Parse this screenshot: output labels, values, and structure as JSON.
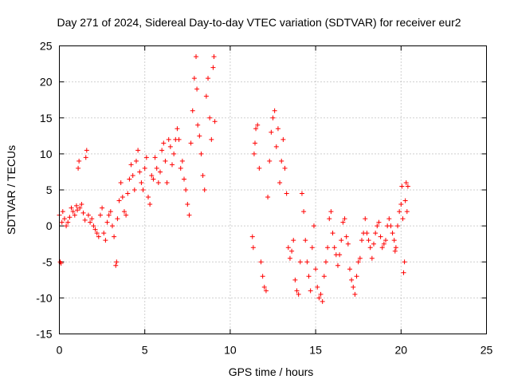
{
  "chart_data": {
    "type": "scatter",
    "title": "Day 271 of 2024, Sidereal Day-to-day VTEC variation (SDTVAR) for receiver eur2",
    "xlabel": "GPS time / hours",
    "ylabel": "SDTVAR / TECUs",
    "xlim": [
      0,
      25
    ],
    "ylim": [
      -15,
      25
    ],
    "xticks": [
      0,
      5,
      10,
      15,
      20,
      25
    ],
    "xtick_labels": [
      "0",
      "5",
      "10",
      "15",
      "20",
      "25"
    ],
    "yticks": [
      -15,
      -10,
      -5,
      0,
      5,
      10,
      15,
      20,
      25
    ],
    "ytick_labels": [
      "-15",
      "-10",
      "-5",
      "0",
      "5",
      "10",
      "15",
      "20",
      "25"
    ],
    "grid": true,
    "marker": "+",
    "color": "#ff0000",
    "series": [
      {
        "name": "SDTVAR",
        "points": [
          [
            0.0,
            1.5
          ],
          [
            0.05,
            -5.0
          ],
          [
            0.1,
            -5.2
          ],
          [
            0.15,
            0.5
          ],
          [
            0.2,
            2.0
          ],
          [
            0.3,
            1.0
          ],
          [
            0.4,
            0.0
          ],
          [
            0.5,
            0.5
          ],
          [
            0.6,
            1.2
          ],
          [
            0.7,
            2.5
          ],
          [
            0.8,
            2.0
          ],
          [
            0.9,
            1.5
          ],
          [
            1.0,
            2.8
          ],
          [
            1.05,
            2.2
          ],
          [
            1.1,
            8.0
          ],
          [
            1.15,
            9.0
          ],
          [
            1.2,
            2.5
          ],
          [
            1.3,
            3.0
          ],
          [
            1.4,
            1.8
          ],
          [
            1.5,
            0.8
          ],
          [
            1.55,
            9.5
          ],
          [
            1.6,
            10.5
          ],
          [
            1.7,
            1.5
          ],
          [
            1.8,
            0.5
          ],
          [
            1.9,
            1.0
          ],
          [
            2.0,
            0.0
          ],
          [
            2.1,
            -0.5
          ],
          [
            2.2,
            -1.0
          ],
          [
            2.3,
            -1.5
          ],
          [
            2.4,
            1.5
          ],
          [
            2.5,
            2.5
          ],
          [
            2.6,
            -1.0
          ],
          [
            2.7,
            -2.0
          ],
          [
            2.8,
            0.5
          ],
          [
            2.9,
            1.5
          ],
          [
            3.0,
            2.0
          ],
          [
            3.1,
            0.0
          ],
          [
            3.2,
            -1.5
          ],
          [
            3.3,
            -5.5
          ],
          [
            3.35,
            -5.0
          ],
          [
            3.4,
            1.0
          ],
          [
            3.5,
            3.5
          ],
          [
            3.6,
            6.0
          ],
          [
            3.7,
            4.0
          ],
          [
            3.8,
            2.0
          ],
          [
            3.9,
            1.5
          ],
          [
            4.0,
            4.5
          ],
          [
            4.1,
            6.5
          ],
          [
            4.2,
            8.5
          ],
          [
            4.3,
            7.0
          ],
          [
            4.4,
            5.0
          ],
          [
            4.5,
            9.0
          ],
          [
            4.6,
            10.5
          ],
          [
            4.7,
            7.5
          ],
          [
            4.8,
            6.0
          ],
          [
            4.9,
            5.0
          ],
          [
            5.0,
            8.0
          ],
          [
            5.1,
            9.5
          ],
          [
            5.2,
            4.0
          ],
          [
            5.3,
            3.0
          ],
          [
            5.4,
            7.0
          ],
          [
            5.5,
            6.5
          ],
          [
            5.6,
            9.5
          ],
          [
            5.7,
            8.0
          ],
          [
            5.8,
            6.0
          ],
          [
            5.9,
            7.5
          ],
          [
            6.0,
            10.5
          ],
          [
            6.1,
            11.5
          ],
          [
            6.2,
            9.0
          ],
          [
            6.3,
            6.0
          ],
          [
            6.4,
            12.0
          ],
          [
            6.5,
            11.0
          ],
          [
            6.6,
            8.5
          ],
          [
            6.7,
            10.0
          ],
          [
            6.8,
            12.0
          ],
          [
            6.9,
            13.5
          ],
          [
            7.0,
            12.0
          ],
          [
            7.1,
            8.0
          ],
          [
            7.2,
            9.0
          ],
          [
            7.3,
            6.5
          ],
          [
            7.4,
            5.0
          ],
          [
            7.5,
            3.0
          ],
          [
            7.6,
            1.5
          ],
          [
            7.7,
            11.5
          ],
          [
            7.8,
            16.0
          ],
          [
            7.9,
            20.5
          ],
          [
            8.0,
            23.5
          ],
          [
            8.05,
            19.0
          ],
          [
            8.1,
            14.0
          ],
          [
            8.2,
            12.5
          ],
          [
            8.3,
            10.0
          ],
          [
            8.4,
            7.0
          ],
          [
            8.5,
            5.0
          ],
          [
            8.6,
            18.0
          ],
          [
            8.7,
            20.5
          ],
          [
            8.8,
            15.0
          ],
          [
            8.9,
            12.0
          ],
          [
            9.0,
            22.0
          ],
          [
            9.05,
            23.5
          ],
          [
            9.1,
            14.5
          ],
          [
            11.3,
            -1.5
          ],
          [
            11.35,
            -3.0
          ],
          [
            11.4,
            10.0
          ],
          [
            11.45,
            11.5
          ],
          [
            11.5,
            13.5
          ],
          [
            11.6,
            14.0
          ],
          [
            11.7,
            8.0
          ],
          [
            11.8,
            -5.0
          ],
          [
            11.9,
            -7.0
          ],
          [
            12.0,
            -8.5
          ],
          [
            12.1,
            -9.0
          ],
          [
            12.2,
            4.0
          ],
          [
            12.3,
            9.0
          ],
          [
            12.4,
            13.0
          ],
          [
            12.5,
            15.0
          ],
          [
            12.6,
            16.0
          ],
          [
            12.7,
            11.0
          ],
          [
            12.8,
            13.5
          ],
          [
            12.9,
            6.0
          ],
          [
            13.0,
            9.0
          ],
          [
            13.1,
            12.0
          ],
          [
            13.2,
            8.0
          ],
          [
            13.3,
            4.5
          ],
          [
            13.4,
            -3.0
          ],
          [
            13.5,
            -4.5
          ],
          [
            13.6,
            -3.5
          ],
          [
            13.7,
            -2.0
          ],
          [
            13.8,
            -7.5
          ],
          [
            13.9,
            -9.0
          ],
          [
            14.0,
            -9.5
          ],
          [
            14.1,
            -5.0
          ],
          [
            14.2,
            4.5
          ],
          [
            14.3,
            2.0
          ],
          [
            14.4,
            -2.0
          ],
          [
            14.5,
            -5.0
          ],
          [
            14.6,
            -7.0
          ],
          [
            14.7,
            -9.0
          ],
          [
            14.8,
            -3.0
          ],
          [
            14.9,
            0.0
          ],
          [
            15.0,
            -6.0
          ],
          [
            15.1,
            -8.5
          ],
          [
            15.2,
            -10.0
          ],
          [
            15.3,
            -9.5
          ],
          [
            15.4,
            -10.5
          ],
          [
            15.5,
            -7.0
          ],
          [
            15.6,
            -5.0
          ],
          [
            15.7,
            -3.0
          ],
          [
            15.8,
            1.0
          ],
          [
            15.9,
            2.0
          ],
          [
            16.0,
            -1.0
          ],
          [
            16.1,
            -3.0
          ],
          [
            16.2,
            -4.0
          ],
          [
            16.3,
            -5.5
          ],
          [
            16.4,
            -4.0
          ],
          [
            16.5,
            -2.0
          ],
          [
            16.6,
            0.5
          ],
          [
            16.7,
            1.0
          ],
          [
            16.8,
            -1.5
          ],
          [
            16.9,
            -2.5
          ],
          [
            17.0,
            -6.0
          ],
          [
            17.1,
            -7.5
          ],
          [
            17.2,
            -8.5
          ],
          [
            17.3,
            -9.5
          ],
          [
            17.4,
            -7.0
          ],
          [
            17.5,
            -5.0
          ],
          [
            17.6,
            -4.5
          ],
          [
            17.7,
            -2.0
          ],
          [
            17.8,
            -1.0
          ],
          [
            17.9,
            1.0
          ],
          [
            18.0,
            -1.0
          ],
          [
            18.1,
            -2.0
          ],
          [
            18.2,
            -3.0
          ],
          [
            18.3,
            -4.5
          ],
          [
            18.4,
            -2.5
          ],
          [
            18.5,
            -1.0
          ],
          [
            18.6,
            0.0
          ],
          [
            18.7,
            0.5
          ],
          [
            18.8,
            -1.5
          ],
          [
            18.9,
            -3.0
          ],
          [
            19.0,
            -2.5
          ],
          [
            19.1,
            -2.0
          ],
          [
            19.2,
            0.0
          ],
          [
            19.3,
            1.0
          ],
          [
            19.4,
            0.0
          ],
          [
            19.5,
            -1.0
          ],
          [
            19.6,
            -2.0
          ],
          [
            19.65,
            -3.5
          ],
          [
            19.7,
            -3.0
          ],
          [
            19.8,
            0.0
          ],
          [
            19.9,
            2.0
          ],
          [
            20.0,
            3.0
          ],
          [
            20.05,
            5.5
          ],
          [
            20.1,
            1.0
          ],
          [
            20.15,
            -6.5
          ],
          [
            20.2,
            -5.0
          ],
          [
            20.25,
            3.5
          ],
          [
            20.3,
            6.0
          ],
          [
            20.35,
            2.0
          ],
          [
            20.4,
            5.5
          ]
        ]
      }
    ]
  }
}
